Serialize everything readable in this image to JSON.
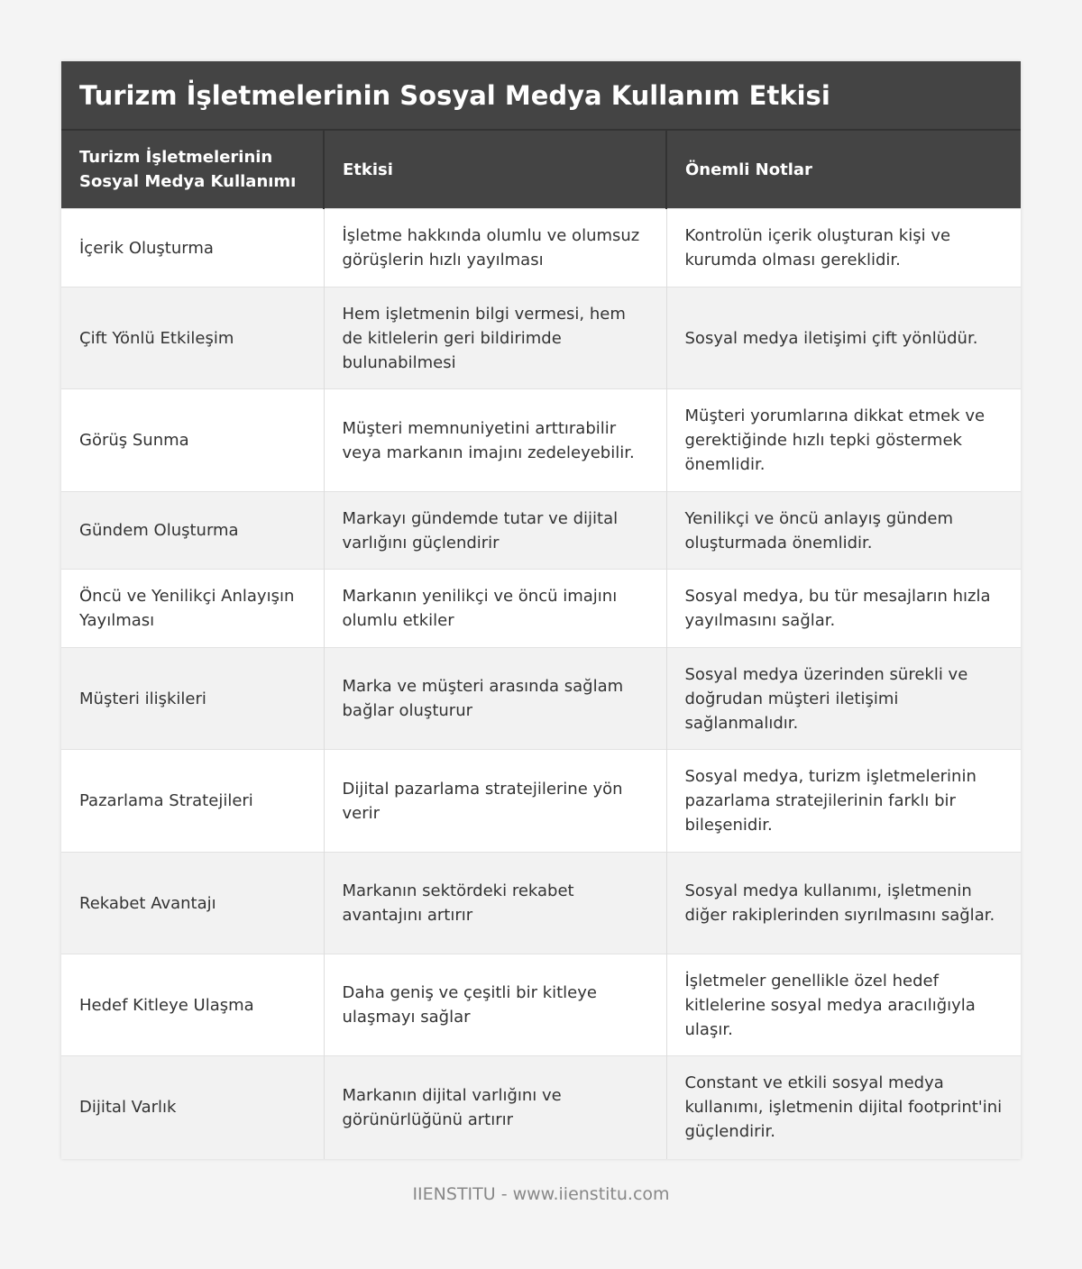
{
  "title": "Turizm İşletmelerinin Sosyal Medya Kullanım Etkisi",
  "columns": [
    "Turizm İşletmelerinin Sosyal Medya Kullanımı",
    "Etkisi",
    "Önemli Notlar"
  ],
  "rows": [
    [
      "İçerik Oluşturma",
      "İşletme hakkında olumlu ve olumsuz görüşlerin hızlı yayılması",
      "Kontrolün içerik oluşturan kişi ve kurumda olması gereklidir."
    ],
    [
      "Çift Yönlü Etkileşim",
      "Hem işletmenin bilgi vermesi, hem de kitlelerin geri bildirimde bulunabilmesi",
      "Sosyal medya iletişimi çift yönlüdür."
    ],
    [
      "Görüş Sunma",
      "Müşteri memnuniyetini arttırabilir veya markanın imajını zedeleyebilir.",
      "Müşteri yorumlarına dikkat etmek ve gerektiğinde hızlı tepki göstermek önemlidir."
    ],
    [
      "Gündem Oluşturma",
      "Markayı gündemde tutar ve dijital varlığını güçlendirir",
      "Yenilikçi ve öncü anlayış gündem oluşturmada önemlidir."
    ],
    [
      "Öncü ve Yenilikçi Anlayışın Yayılması",
      "Markanın yenilikçi ve öncü imajını olumlu etkiler",
      "Sosyal medya, bu tür mesajların hızla yayılmasını sağlar."
    ],
    [
      "Müşteri ilişkileri",
      "Marka ve müşteri arasında sağlam bağlar oluşturur",
      "Sosyal medya üzerinden sürekli ve doğrudan müşteri iletişimi sağlanmalıdır."
    ],
    [
      "Pazarlama Stratejileri",
      "Dijital pazarlama stratejilerine yön verir",
      "Sosyal medya, turizm işletmelerinin pazarlama stratejilerinin farklı bir bileşenidir."
    ],
    [
      "Rekabet Avantajı",
      "Markanın sektördeki rekabet avantajını artırır",
      "Sosyal medya kullanımı, işletmenin diğer rakiplerinden sıyrılmasını sağlar."
    ],
    [
      "Hedef Kitleye Ulaşma",
      "Daha geniş ve çeşitli bir kitleye ulaşmayı sağlar",
      "İşletmeler genellikle özel hedef kitlelerine sosyal medya aracılığıyla ulaşır."
    ],
    [
      "Dijital Varlık",
      "Markanın dijital varlığını ve görünürlüğünü artırır",
      "Constant ve etkili sosyal medya kullanımı, işletmenin dijital footprint'ini güçlendirir."
    ]
  ],
  "footer": "IIENSTITU - www.iienstitu.com"
}
